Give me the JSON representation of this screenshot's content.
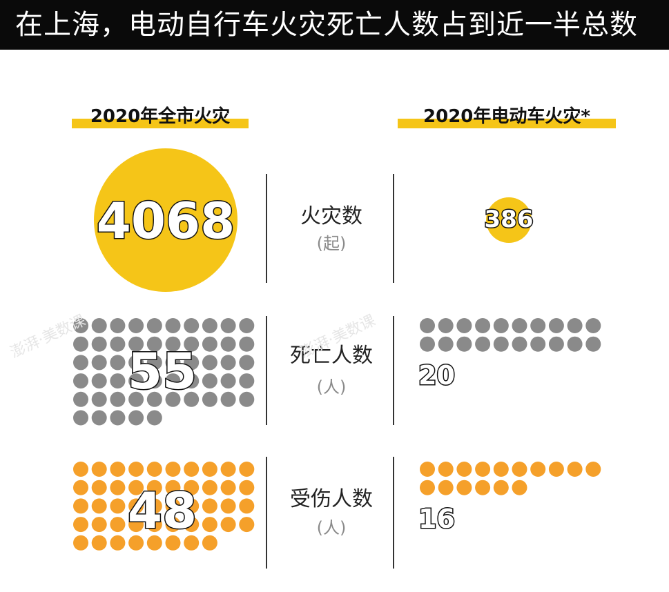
{
  "title": "在上海，电动自行车火灾死亡人数占到近一半总数",
  "headers": {
    "left": "2020年全市火灾",
    "right": "2020年电动车火灾*"
  },
  "rows": [
    {
      "label": "火灾数",
      "unit": "(起)"
    },
    {
      "label": "死亡人数",
      "unit": "(人)"
    },
    {
      "label": "受伤人数",
      "unit": "(人)"
    }
  ],
  "watermarks": [
    "澎湃·美数课",
    "澎湃·美数课"
  ],
  "colors": {
    "title_bg": "#0a0a0a",
    "highlight": "#f5c518",
    "death_dot": "#8a8a8a",
    "injury_dot": "#f5a02a"
  },
  "chart_data": {
    "type": "table",
    "categories": [
      "火灾数",
      "死亡人数",
      "受伤人数"
    ],
    "series": [
      {
        "name": "2020年全市火灾",
        "values": [
          4068,
          55,
          48
        ]
      },
      {
        "name": "2020年电动车火灾*",
        "values": [
          386,
          20,
          16
        ]
      }
    ],
    "labels": {
      "all_fires": "4068",
      "ebike_fires": "386",
      "all_deaths": "55",
      "ebike_deaths": "20",
      "all_injuries": "48",
      "ebike_injuries": "16"
    }
  }
}
